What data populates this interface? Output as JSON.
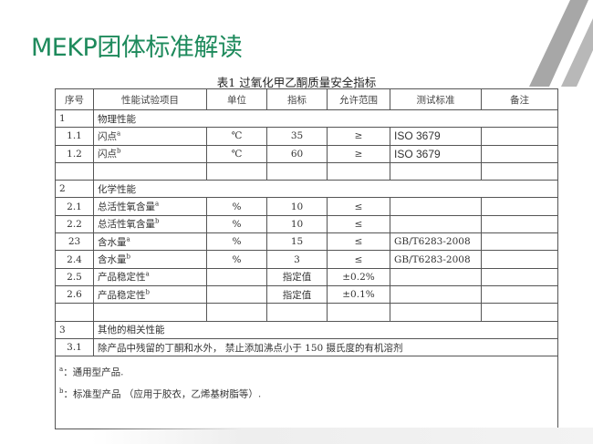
{
  "page_title": "MEKP团体标准解读",
  "table_caption": "表1  过氧化甲乙酮质量安全指标",
  "headers": [
    "序号",
    "性能试验项目",
    "单位",
    "指标",
    "允许范围",
    "测试标准",
    "备注"
  ],
  "rows": [
    {
      "type": "section",
      "no": "1",
      "label": "物理性能"
    },
    {
      "no": "1.1",
      "item": "闪点",
      "sup": "a",
      "unit": "℃",
      "value": "35",
      "range": "≥",
      "std": "ISO 3679",
      "note": ""
    },
    {
      "no": "1.2",
      "item": "闪点",
      "sup": "b",
      "unit": "℃",
      "value": "60",
      "range": "≥",
      "std": "ISO 3679",
      "note": ""
    },
    {
      "no": "",
      "item": "",
      "sup": "",
      "unit": "",
      "value": "",
      "range": "",
      "std": "",
      "note": ""
    },
    {
      "type": "section",
      "no": "2",
      "label": "化学性能"
    },
    {
      "no": "2.1",
      "item": "总活性氧含量",
      "sup": "a",
      "unit": "%",
      "value": "10",
      "range": "≤",
      "std": "",
      "note": ""
    },
    {
      "no": "2.2",
      "item": "总活性氧含量",
      "sup": "b",
      "unit": "%",
      "value": "10",
      "range": "≤",
      "std": "",
      "note": ""
    },
    {
      "no": "23",
      "item": "含水量",
      "sup": "a",
      "unit": "%",
      "value": "15",
      "range": "≤",
      "std": "GB/T6283-2008",
      "note": ""
    },
    {
      "no": "2.4",
      "item": "含水量",
      "sup": "b",
      "unit": "%",
      "value": "3",
      "range": "≤",
      "std": "GB/T6283-2008",
      "note": ""
    },
    {
      "no": "2.5",
      "item": "产品稳定性",
      "sup": "a",
      "unit": "",
      "value": "指定值",
      "range": "±0.2%",
      "std": "",
      "note": ""
    },
    {
      "no": "2.6",
      "item": "产品稳定性",
      "sup": "b",
      "unit": "",
      "value": "指定值",
      "range": "±0.1%",
      "std": "",
      "note": ""
    },
    {
      "no": "",
      "item": "",
      "sup": "",
      "unit": "",
      "value": "",
      "range": "",
      "std": "",
      "note": ""
    },
    {
      "type": "section",
      "no": "3",
      "label": "其他的相关性能"
    },
    {
      "type": "section",
      "no": "3.1",
      "label": "除产品中残留的丁酮和水外， 禁止添加沸点小于 150 摄氏度的有机溶剂"
    }
  ],
  "footnotes": [
    {
      "mark": "a",
      "text": "：通用型产品."
    },
    {
      "mark": "b",
      "text": "：标准型产品 （应用于胶衣，乙烯基树脂等）."
    }
  ],
  "colors": {
    "title": "#1e8a5c"
  }
}
